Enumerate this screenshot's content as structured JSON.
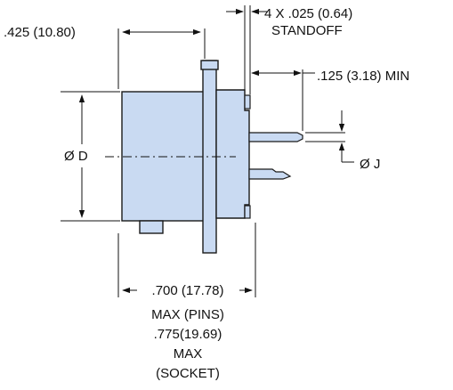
{
  "dimensions": {
    "flange_depth": ".425 (10.80)",
    "standoff_size": "4 X .025 (0.64)",
    "standoff_label": "STANDOFF",
    "pin_length": ".125 (3.18) MIN",
    "body_diameter": "Ø D",
    "pin_diameter": "Ø J",
    "overall_length_pins": ".700 (17.78)",
    "overall_length_pins_note": "MAX (PINS)",
    "overall_length_socket": ".775(19.69)",
    "overall_length_socket_note1": "MAX",
    "overall_length_socket_note2": "(SOCKET)"
  },
  "colors": {
    "part_fill": "#c9daf2",
    "outline": "#1a1a1a"
  }
}
